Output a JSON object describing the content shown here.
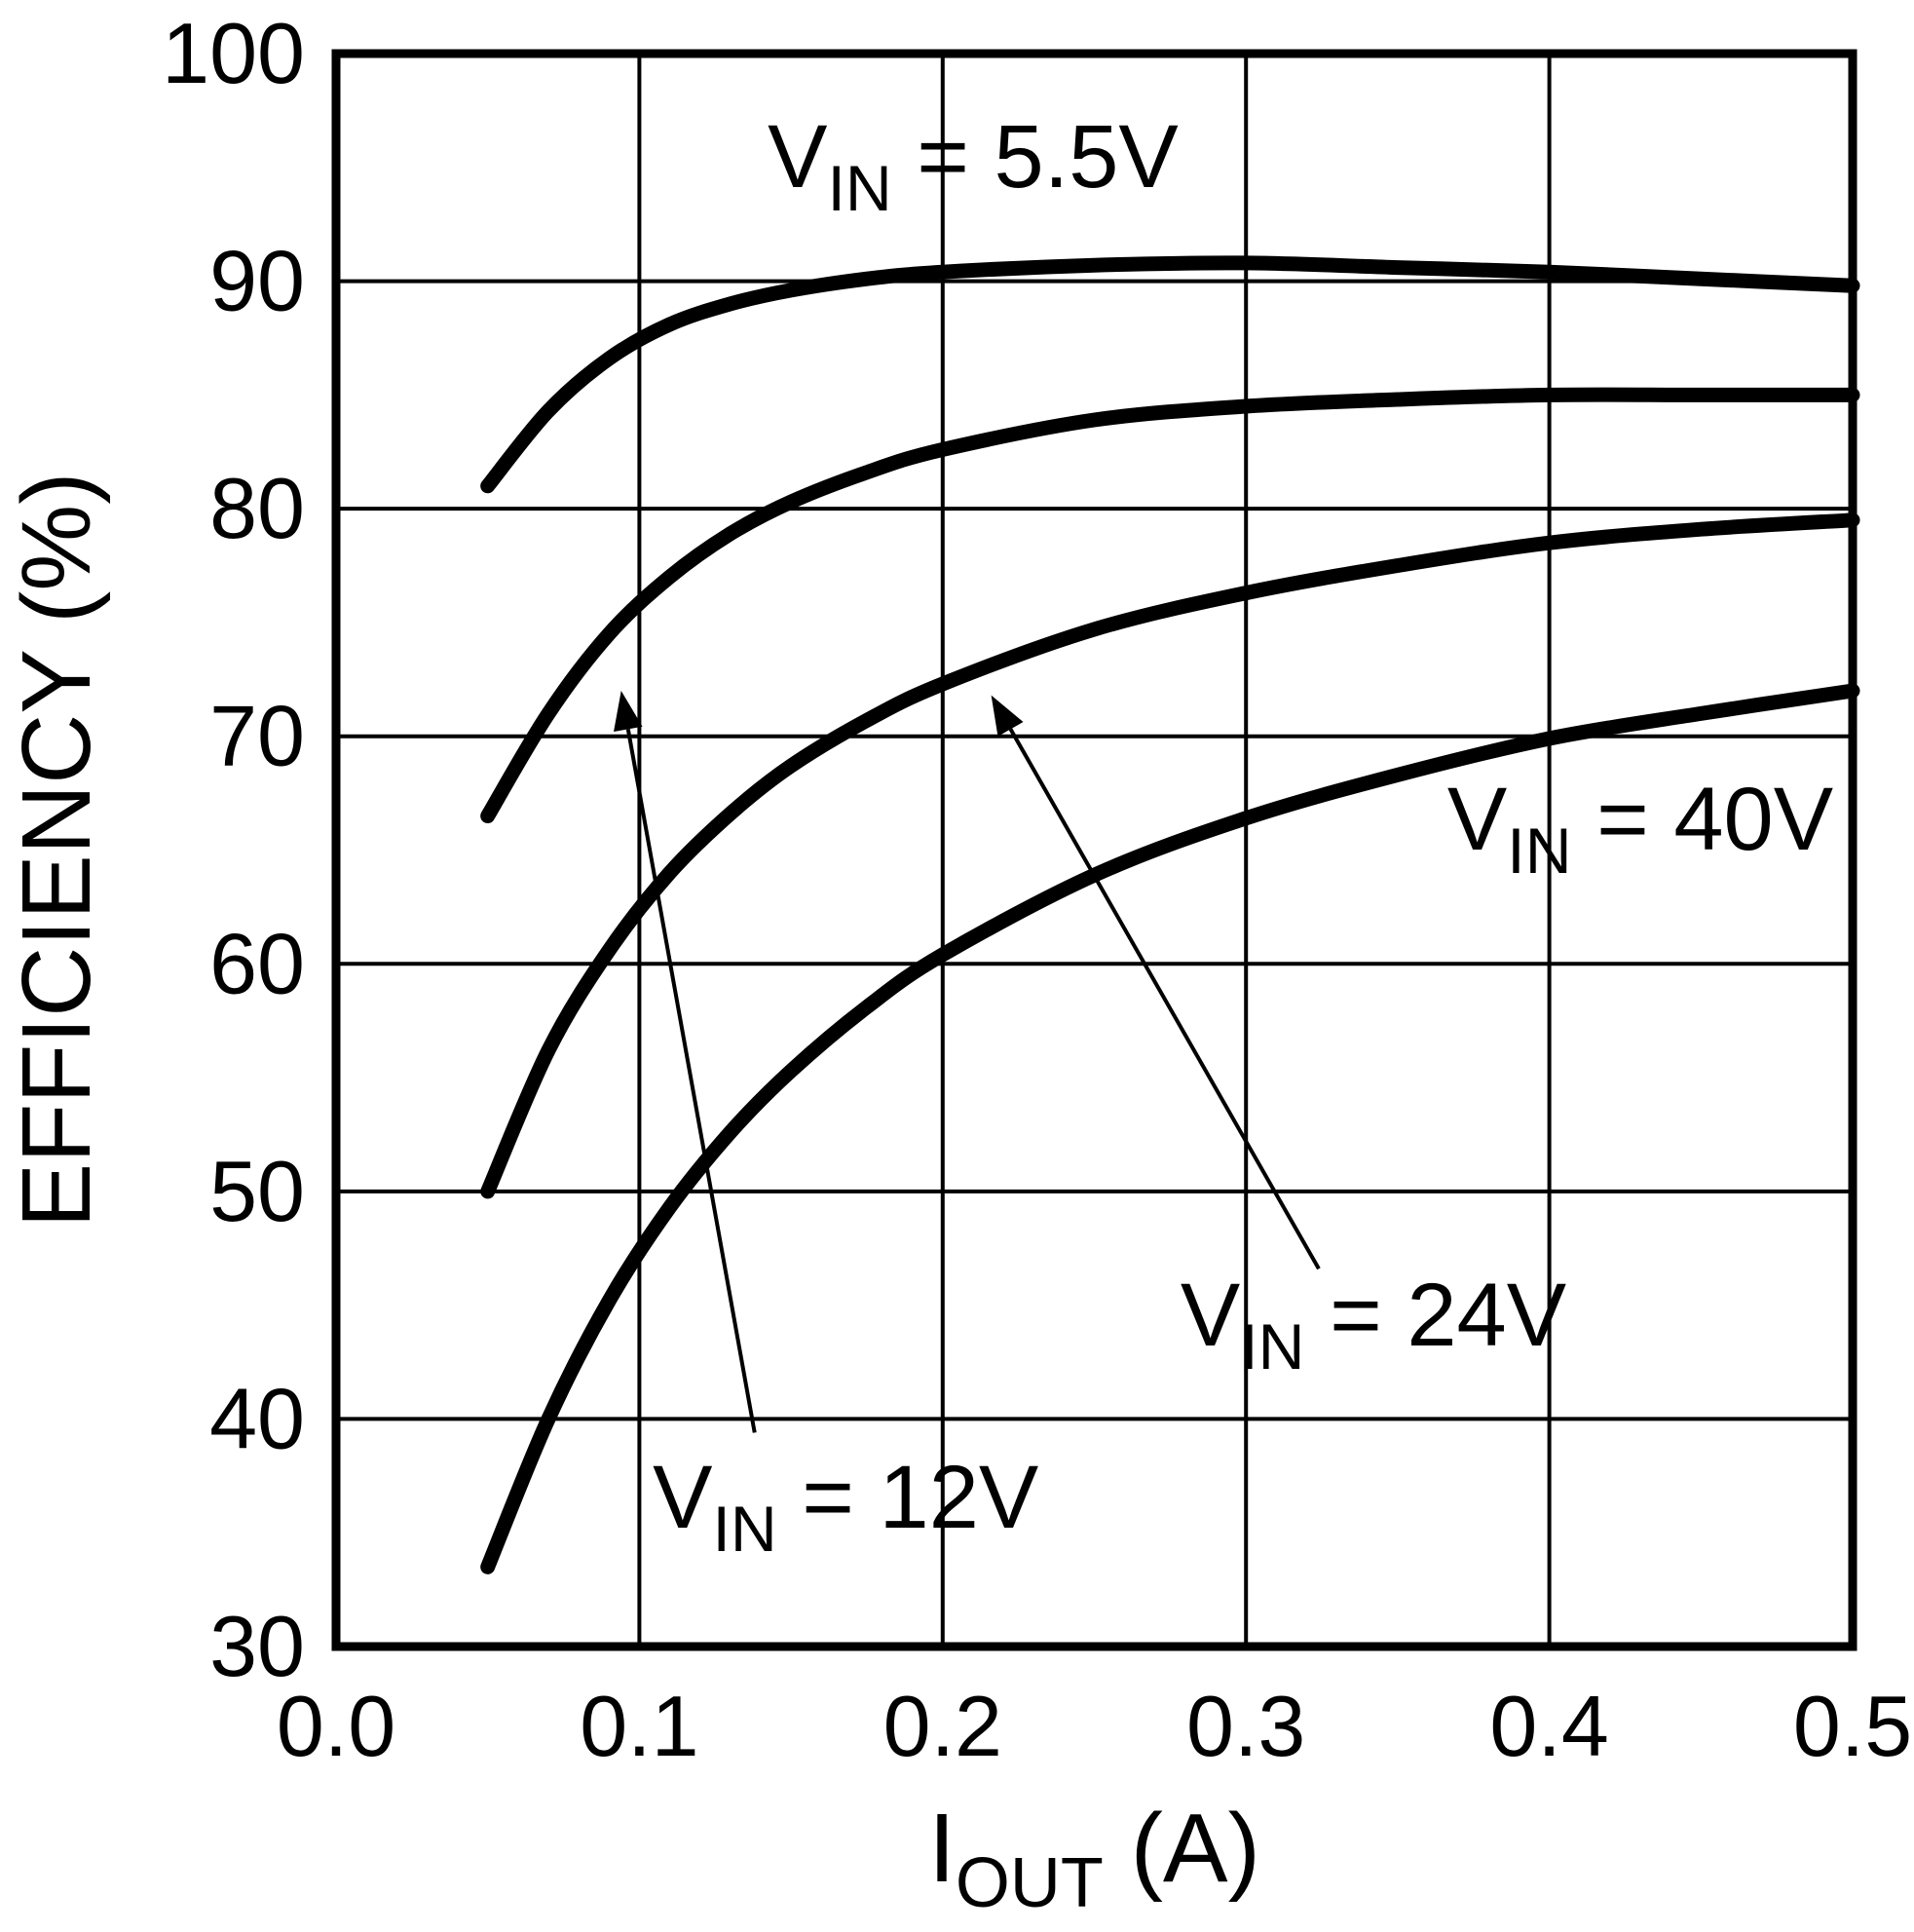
{
  "figure": {
    "background": "#ffffff",
    "line_color": "#000000"
  },
  "chart_data": {
    "type": "line",
    "title": "",
    "xlabel": {
      "pre": "I",
      "sub": "OUT",
      "post": " (A)"
    },
    "ylabel": "EFFICIENCY (%)",
    "xlim": [
      0.0,
      0.5
    ],
    "ylim": [
      30,
      100
    ],
    "grid": true,
    "legend_position": "inline-annotations",
    "x_ticks": [
      {
        "value": 0.0,
        "label": "0.0"
      },
      {
        "value": 0.1,
        "label": "0.1"
      },
      {
        "value": 0.2,
        "label": "0.2"
      },
      {
        "value": 0.3,
        "label": "0.3"
      },
      {
        "value": 0.4,
        "label": "0.4"
      },
      {
        "value": 0.5,
        "label": "0.5"
      }
    ],
    "y_ticks": [
      {
        "value": 30,
        "label": "30"
      },
      {
        "value": 40,
        "label": "40"
      },
      {
        "value": 50,
        "label": "50"
      },
      {
        "value": 60,
        "label": "60"
      },
      {
        "value": 70,
        "label": "70"
      },
      {
        "value": 80,
        "label": "80"
      },
      {
        "value": 90,
        "label": "90"
      },
      {
        "value": 100,
        "label": "100"
      }
    ],
    "x": [
      0.05,
      0.07,
      0.09,
      0.11,
      0.13,
      0.15,
      0.175,
      0.2,
      0.25,
      0.3,
      0.35,
      0.4,
      0.45,
      0.5
    ],
    "series": [
      {
        "id": "vin-5v5",
        "name": "VIN = 5.5V",
        "y": [
          81.0,
          84.3,
          86.6,
          88.1,
          89.0,
          89.6,
          90.1,
          90.4,
          90.7,
          90.8,
          90.6,
          90.4,
          90.1,
          89.8
        ]
      },
      {
        "id": "vin-12v",
        "name": "VIN = 12V",
        "y": [
          66.5,
          71.0,
          74.5,
          77.0,
          78.9,
          80.3,
          81.6,
          82.6,
          83.9,
          84.5,
          84.8,
          85.0,
          85.0,
          85.0
        ]
      },
      {
        "id": "vin-24v",
        "name": "VIN = 24V",
        "y": [
          50.0,
          56.2,
          60.6,
          64.0,
          66.6,
          68.7,
          70.7,
          72.3,
          74.7,
          76.3,
          77.5,
          78.5,
          79.1,
          79.5
        ]
      },
      {
        "id": "vin-40v",
        "name": "VIN = 40V",
        "y": [
          33.5,
          40.0,
          45.2,
          49.3,
          52.6,
          55.3,
          58.1,
          60.4,
          63.9,
          66.4,
          68.3,
          69.9,
          71.0,
          72.0
        ]
      }
    ],
    "annotations": [
      {
        "id": "vin-5v5",
        "pre": "V",
        "sub": "IN",
        "post": " = 5.5V",
        "x": 0.21,
        "y": 95.5
      },
      {
        "id": "vin-40v",
        "pre": "V",
        "sub": "IN",
        "post": " = 40V",
        "x": 0.43,
        "y": 66.4
      },
      {
        "id": "vin-24v",
        "pre": "V",
        "sub": "IN",
        "post": " = 24V",
        "x": 0.342,
        "y": 44.6
      },
      {
        "id": "vin-12v",
        "pre": "V",
        "sub": "IN",
        "post": " = 12V",
        "x": 0.168,
        "y": 36.6
      }
    ],
    "arrows": [
      {
        "id": "arrow-to-vin-12v-curve",
        "from": {
          "x": 0.138,
          "y": 39.4
        },
        "to": {
          "x": 0.094,
          "y": 72.0
        }
      },
      {
        "id": "arrow-to-vin-24v-curve",
        "from": {
          "x": 0.324,
          "y": 46.6
        },
        "to": {
          "x": 0.216,
          "y": 71.8
        }
      }
    ]
  }
}
